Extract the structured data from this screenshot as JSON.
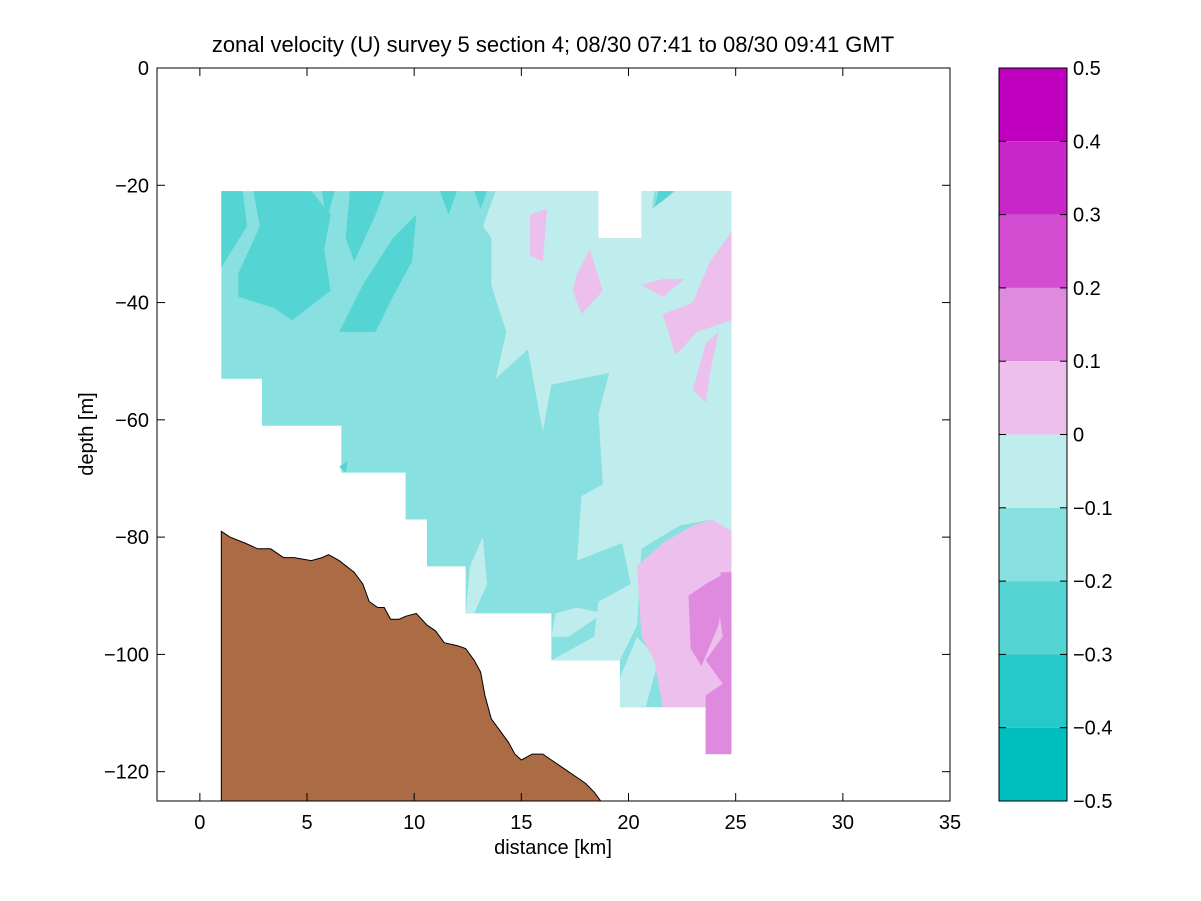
{
  "chart_data": {
    "type": "contour",
    "title": "zonal velocity (U) survey 5 section 4; 08/30 07:41 to 08/30 09:41 GMT",
    "xlabel": "distance [km]",
    "ylabel": "depth [m]",
    "xlim": [
      -2,
      35
    ],
    "ylim": [
      -125,
      0
    ],
    "xticks": [
      0,
      5,
      10,
      15,
      20,
      25,
      30,
      35
    ],
    "yticks": [
      0,
      -20,
      -40,
      -60,
      -80,
      -100,
      -120
    ],
    "grid": false,
    "colorbar": {
      "range": [
        -0.5,
        0.5
      ],
      "ticks": [
        0.5,
        0.4,
        0.3,
        0.2,
        0.1,
        0,
        -0.1,
        -0.2,
        -0.3,
        -0.4,
        -0.5
      ],
      "tick_labels": [
        "0.5",
        "0.4",
        "0.3",
        "0.2",
        "0.1",
        "0",
        "−0.1",
        "−0.2",
        "−0.3",
        "−0.4",
        "−0.5"
      ],
      "levels": [
        {
          "from": 0.4,
          "to": 0.5,
          "color": "#bf00bf"
        },
        {
          "from": 0.3,
          "to": 0.4,
          "color": "#c926c9"
        },
        {
          "from": 0.2,
          "to": 0.3,
          "color": "#d24dd2"
        },
        {
          "from": 0.1,
          "to": 0.2,
          "color": "#df89df"
        },
        {
          "from": 0.0,
          "to": 0.1,
          "color": "#ecbfec"
        },
        {
          "from": -0.1,
          "to": 0.0,
          "color": "#bfecec"
        },
        {
          "from": -0.2,
          "to": -0.1,
          "color": "#89e0e0"
        },
        {
          "from": -0.3,
          "to": -0.2,
          "color": "#55d4d4"
        },
        {
          "from": -0.4,
          "to": -0.3,
          "color": "#26c9c9"
        },
        {
          "from": -0.5,
          "to": -0.4,
          "color": "#00bfbf"
        }
      ]
    },
    "data_extent": {
      "color": "#89e0e0",
      "outline": [
        [
          1,
          -21
        ],
        [
          24.8,
          -21
        ],
        [
          24.8,
          -117
        ],
        [
          23.6,
          -117
        ],
        [
          23.6,
          -109
        ],
        [
          19.6,
          -109
        ],
        [
          19.6,
          -101
        ],
        [
          16.4,
          -101
        ],
        [
          16.4,
          -93
        ],
        [
          12.4,
          -93
        ],
        [
          12.4,
          -85
        ],
        [
          10.6,
          -85
        ],
        [
          10.6,
          -77
        ],
        [
          9.6,
          -77
        ],
        [
          9.6,
          -69
        ],
        [
          6.6,
          -69
        ],
        [
          6.6,
          -61
        ],
        [
          2.9,
          -61
        ],
        [
          2.9,
          -53
        ],
        [
          1,
          -53
        ]
      ]
    },
    "gap": {
      "color": "#ffffff",
      "outline": [
        [
          18.6,
          -20
        ],
        [
          20.6,
          -20
        ],
        [
          20.6,
          -29
        ],
        [
          18.6,
          -29
        ]
      ]
    },
    "regions": [
      {
        "level": -0.3,
        "color": "#55d4d4",
        "outline": [
          [
            1,
            -21
          ],
          [
            2,
            -21
          ],
          [
            2.2,
            -27
          ],
          [
            1,
            -34
          ]
        ]
      },
      {
        "level": -0.3,
        "color": "#55d4d4",
        "outline": [
          [
            2.5,
            -21
          ],
          [
            5.2,
            -21
          ],
          [
            6.1,
            -25
          ],
          [
            5.8,
            -31
          ],
          [
            6.1,
            -38
          ],
          [
            4.3,
            -43
          ],
          [
            3.5,
            -41
          ],
          [
            1.8,
            -39
          ],
          [
            1.8,
            -35
          ],
          [
            2.8,
            -27
          ]
        ]
      },
      {
        "level": -0.3,
        "color": "#55d4d4",
        "outline": [
          [
            5.7,
            -21
          ],
          [
            6.3,
            -21
          ],
          [
            5.9,
            -26
          ]
        ]
      },
      {
        "level": -0.3,
        "color": "#55d4d4",
        "outline": [
          [
            7,
            -21
          ],
          [
            8.6,
            -21
          ],
          [
            8.2,
            -25
          ],
          [
            7.2,
            -33
          ],
          [
            6.8,
            -29
          ]
        ]
      },
      {
        "level": -0.3,
        "color": "#55d4d4",
        "outline": [
          [
            10.1,
            -25
          ],
          [
            9.9,
            -33
          ],
          [
            9.0,
            -39
          ],
          [
            8.2,
            -45
          ],
          [
            6.5,
            -45
          ],
          [
            7.6,
            -37
          ],
          [
            9.0,
            -29
          ]
        ]
      },
      {
        "level": -0.3,
        "color": "#55d4d4",
        "outline": [
          [
            11.2,
            -21
          ],
          [
            12.0,
            -21
          ],
          [
            11.6,
            -25
          ]
        ]
      },
      {
        "level": -0.3,
        "color": "#55d4d4",
        "outline": [
          [
            12.8,
            -21
          ],
          [
            13.4,
            -21
          ],
          [
            13.1,
            -24
          ]
        ]
      },
      {
        "level": -0.3,
        "color": "#55d4d4",
        "outline": [
          [
            21.4,
            -21
          ],
          [
            22.1,
            -21
          ],
          [
            21.2,
            -24
          ]
        ]
      },
      {
        "level": -0.3,
        "color": "#55d4d4",
        "outline": [
          [
            6.5,
            -68
          ],
          [
            6.9,
            -67
          ],
          [
            6.8,
            -69
          ]
        ]
      },
      {
        "level": -0.1,
        "color": "#bfecec",
        "outline": [
          [
            13.8,
            -21
          ],
          [
            18.6,
            -21
          ],
          [
            18.6,
            -29
          ],
          [
            20.6,
            -29
          ],
          [
            20.6,
            -21
          ],
          [
            21.2,
            -21
          ],
          [
            21.1,
            -24
          ],
          [
            22.2,
            -21
          ],
          [
            24.8,
            -21
          ],
          [
            24.8,
            -79
          ],
          [
            23.9,
            -77
          ],
          [
            22.4,
            -78
          ],
          [
            20.6,
            -82
          ],
          [
            20.4,
            -95
          ],
          [
            19.6,
            -101
          ],
          [
            16.4,
            -101
          ],
          [
            18.4,
            -97
          ],
          [
            18.6,
            -91
          ],
          [
            20.1,
            -88
          ],
          [
            19.7,
            -81
          ],
          [
            17.6,
            -84
          ],
          [
            17.8,
            -73
          ],
          [
            18.8,
            -71
          ],
          [
            18.6,
            -59
          ],
          [
            19.1,
            -52
          ],
          [
            16.4,
            -54
          ],
          [
            16.0,
            -62
          ],
          [
            15.3,
            -48
          ],
          [
            13.8,
            -53
          ],
          [
            14.3,
            -45
          ],
          [
            13.6,
            -37
          ],
          [
            13.6,
            -29
          ],
          [
            13.2,
            -27
          ]
        ]
      },
      {
        "level": -0.1,
        "color": "#bfecec",
        "outline": [
          [
            12.6,
            -85
          ],
          [
            13.2,
            -80
          ],
          [
            13.4,
            -88
          ],
          [
            12.8,
            -93
          ],
          [
            12.4,
            -93
          ]
        ]
      },
      {
        "level": -0.1,
        "color": "#bfecec",
        "outline": [
          [
            16.6,
            -93
          ],
          [
            17.6,
            -92
          ],
          [
            18.8,
            -93
          ],
          [
            17.2,
            -97
          ],
          [
            16.4,
            -97
          ]
        ]
      },
      {
        "level": -0.1,
        "color": "#bfecec",
        "outline": [
          [
            19.6,
            -104
          ],
          [
            20.4,
            -97
          ],
          [
            21.4,
            -101
          ],
          [
            20.8,
            -109
          ],
          [
            19.6,
            -109
          ]
        ]
      },
      {
        "level": 0.0,
        "color": "#ecbfec",
        "outline": [
          [
            15.4,
            -25
          ],
          [
            16.2,
            -24
          ],
          [
            16.0,
            -33
          ],
          [
            15.4,
            -32
          ]
        ]
      },
      {
        "level": 0.0,
        "color": "#ecbfec",
        "outline": [
          [
            17.6,
            -35
          ],
          [
            18.2,
            -31
          ],
          [
            18.8,
            -38
          ],
          [
            17.8,
            -42
          ],
          [
            17.4,
            -38
          ]
        ]
      },
      {
        "level": 0.0,
        "color": "#ecbfec",
        "outline": [
          [
            20.6,
            -37
          ],
          [
            21.6,
            -36
          ],
          [
            22.6,
            -36
          ],
          [
            21.6,
            -39
          ]
        ]
      },
      {
        "level": 0.0,
        "color": "#ecbfec",
        "outline": [
          [
            24.8,
            -28
          ],
          [
            24.8,
            -43
          ],
          [
            23.2,
            -45
          ],
          [
            22.2,
            -49
          ],
          [
            21.6,
            -42
          ],
          [
            23.0,
            -40
          ],
          [
            23.8,
            -33
          ]
        ]
      },
      {
        "level": 0.0,
        "color": "#ecbfec",
        "outline": [
          [
            23.6,
            -47
          ],
          [
            24.2,
            -45
          ],
          [
            23.8,
            -52
          ],
          [
            23.6,
            -57
          ],
          [
            23.0,
            -55
          ]
        ]
      },
      {
        "level": 0.0,
        "color": "#ecbfec",
        "outline": [
          [
            24.8,
            -79
          ],
          [
            24.8,
            -117
          ],
          [
            23.6,
            -117
          ],
          [
            23.6,
            -109
          ],
          [
            21.6,
            -109
          ],
          [
            21.2,
            -101
          ],
          [
            20.6,
            -97
          ],
          [
            20.4,
            -85
          ],
          [
            21.6,
            -81
          ],
          [
            23.0,
            -78
          ],
          [
            23.9,
            -77
          ]
        ]
      },
      {
        "level": 0.1,
        "color": "#df89df",
        "outline": [
          [
            24.3,
            -86
          ],
          [
            24.8,
            -86
          ],
          [
            24.8,
            -117
          ],
          [
            23.6,
            -117
          ],
          [
            23.6,
            -107
          ],
          [
            24.4,
            -105
          ],
          [
            23.6,
            -101
          ],
          [
            24.4,
            -97
          ],
          [
            24.2,
            -92
          ]
        ]
      },
      {
        "level": 0.1,
        "color": "#df89df",
        "outline": [
          [
            22.8,
            -90
          ],
          [
            23.6,
            -88
          ],
          [
            24.6,
            -86
          ],
          [
            24.2,
            -95
          ],
          [
            23.4,
            -102
          ],
          [
            22.9,
            -99
          ]
        ]
      }
    ],
    "topography": {
      "color": "#aa6b45",
      "profile": [
        [
          1.0,
          -79
        ],
        [
          1.4,
          -80
        ],
        [
          2.1,
          -81
        ],
        [
          2.7,
          -82
        ],
        [
          3.3,
          -82
        ],
        [
          3.9,
          -83.5
        ],
        [
          4.4,
          -83.5
        ],
        [
          5.2,
          -84
        ],
        [
          5.7,
          -83.5
        ],
        [
          6.0,
          -83
        ],
        [
          6.5,
          -84
        ],
        [
          7.2,
          -86
        ],
        [
          7.6,
          -88
        ],
        [
          7.9,
          -91
        ],
        [
          8.3,
          -92
        ],
        [
          8.6,
          -92
        ],
        [
          8.9,
          -94
        ],
        [
          9.3,
          -94
        ],
        [
          9.6,
          -93.5
        ],
        [
          10.1,
          -93
        ],
        [
          10.6,
          -95
        ],
        [
          11.0,
          -96
        ],
        [
          11.4,
          -98
        ],
        [
          12.0,
          -98.5
        ],
        [
          12.4,
          -99
        ],
        [
          12.8,
          -101
        ],
        [
          13.1,
          -103
        ],
        [
          13.3,
          -107
        ],
        [
          13.6,
          -111
        ],
        [
          14.0,
          -113
        ],
        [
          14.4,
          -115
        ],
        [
          14.7,
          -117
        ],
        [
          15.0,
          -118
        ],
        [
          15.5,
          -117
        ],
        [
          16.0,
          -117
        ],
        [
          16.4,
          -118
        ],
        [
          16.8,
          -119
        ],
        [
          17.2,
          -120
        ],
        [
          17.6,
          -121
        ],
        [
          18.0,
          -122
        ],
        [
          18.4,
          -123.5
        ],
        [
          18.7,
          -125
        ],
        [
          1.0,
          -125
        ]
      ]
    }
  }
}
